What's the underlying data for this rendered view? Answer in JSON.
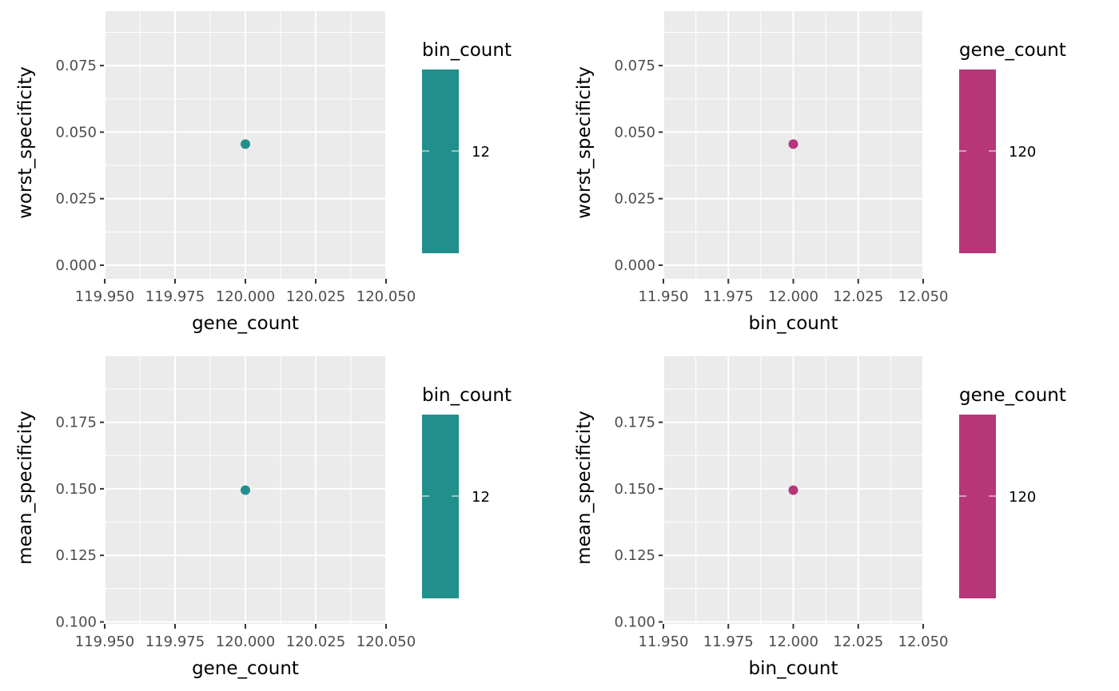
{
  "chart_data": [
    {
      "type": "scatter",
      "xlabel": "gene_count",
      "ylabel": "worst_specificity",
      "xlim": [
        119.95,
        120.05
      ],
      "ylim": [
        0.0,
        0.075
      ],
      "xticks": [
        "119.950",
        "119.975",
        "120.000",
        "120.025",
        "120.050"
      ],
      "yticks": [
        "0.000",
        "0.025",
        "0.050",
        "0.075"
      ],
      "points": [
        {
          "x": 120.0,
          "y": 0.0455,
          "color_value": 12
        }
      ],
      "legend": {
        "title": "bin_count",
        "labels": [
          "12"
        ],
        "color": "#21908C"
      },
      "grid": true
    },
    {
      "type": "scatter",
      "xlabel": "bin_count",
      "ylabel": "worst_specificity",
      "xlim": [
        11.95,
        12.05
      ],
      "ylim": [
        0.0,
        0.075
      ],
      "xticks": [
        "11.950",
        "11.975",
        "12.000",
        "12.025",
        "12.050"
      ],
      "yticks": [
        "0.000",
        "0.025",
        "0.050",
        "0.075"
      ],
      "points": [
        {
          "x": 12.0,
          "y": 0.0455,
          "color_value": 120
        }
      ],
      "legend": {
        "title": "gene_count",
        "labels": [
          "120"
        ],
        "color": "#B63679"
      },
      "grid": true
    },
    {
      "type": "scatter",
      "xlabel": "gene_count",
      "ylabel": "mean_specificity",
      "xlim": [
        119.95,
        120.05
      ],
      "ylim": [
        0.1,
        0.175
      ],
      "xticks": [
        "119.950",
        "119.975",
        "120.000",
        "120.025",
        "120.050"
      ],
      "yticks": [
        "0.100",
        "0.125",
        "0.150",
        "0.175"
      ],
      "points": [
        {
          "x": 120.0,
          "y": 0.1495,
          "color_value": 12
        }
      ],
      "legend": {
        "title": "bin_count",
        "labels": [
          "12"
        ],
        "color": "#21908C"
      },
      "grid": true
    },
    {
      "type": "scatter",
      "xlabel": "bin_count",
      "ylabel": "mean_specificity",
      "xlim": [
        11.95,
        12.05
      ],
      "ylim": [
        0.1,
        0.175
      ],
      "xticks": [
        "11.950",
        "11.975",
        "12.000",
        "12.025",
        "12.050"
      ],
      "yticks": [
        "0.100",
        "0.125",
        "0.150",
        "0.175"
      ],
      "points": [
        {
          "x": 12.0,
          "y": 0.1495,
          "color_value": 120
        }
      ],
      "legend": {
        "title": "gene_count",
        "labels": [
          "120"
        ],
        "color": "#B63679"
      },
      "grid": true
    }
  ]
}
